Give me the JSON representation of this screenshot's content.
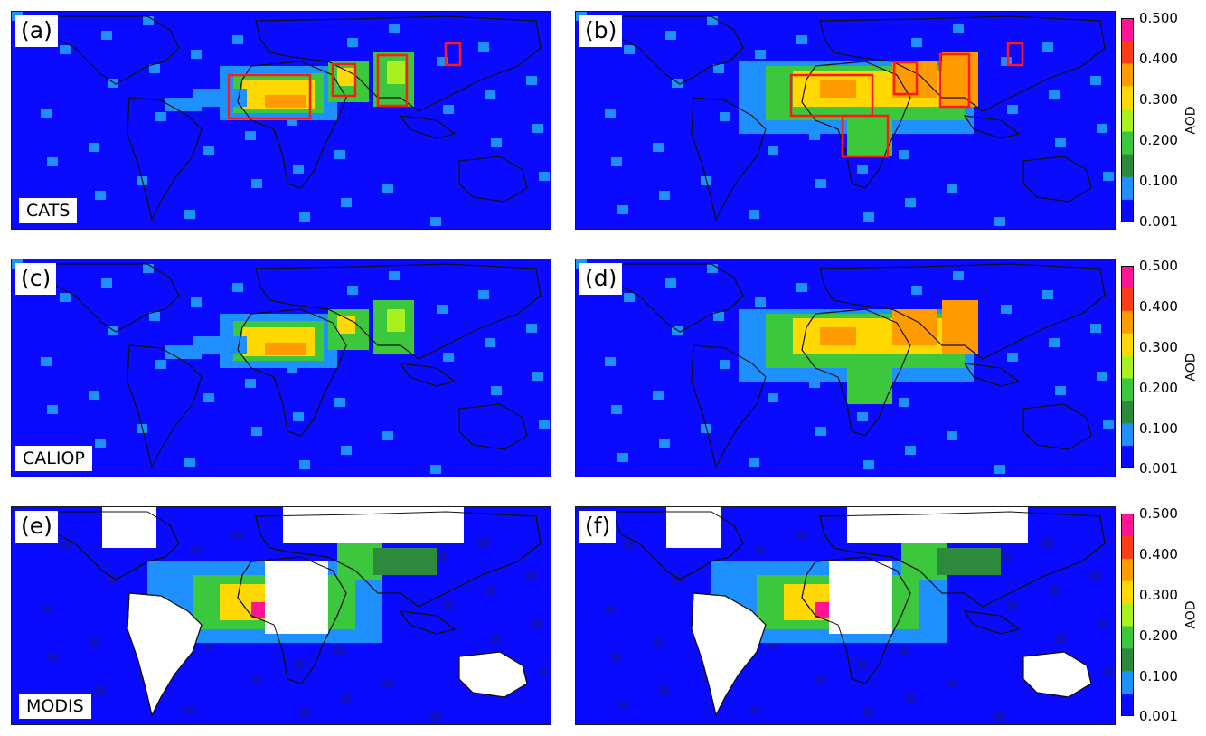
{
  "panels": [
    {
      "tag": "(a)",
      "dataset": "CATS",
      "variant": "day",
      "boxes": "a"
    },
    {
      "tag": "(b)",
      "dataset": "",
      "variant": "night",
      "boxes": "b"
    },
    {
      "tag": "(c)",
      "dataset": "CALIOP",
      "variant": "day",
      "boxes": ""
    },
    {
      "tag": "(d)",
      "dataset": "",
      "variant": "night",
      "boxes": ""
    },
    {
      "tag": "(e)",
      "dataset": "MODIS",
      "variant": "modis",
      "boxes": ""
    },
    {
      "tag": "(f)",
      "dataset": "",
      "variant": "modis2",
      "boxes": ""
    }
  ],
  "colorbar": {
    "label": "AOD",
    "ticks": [
      "0.500",
      "0.400",
      "0.300",
      "0.200",
      "0.100",
      "0.001"
    ],
    "colors": [
      "#ff1493",
      "#ff3b1a",
      "#ff9a00",
      "#ffd800",
      "#a8f01e",
      "#3cc83c",
      "#2d8a3c",
      "#1e90ff",
      "#0a0aff"
    ]
  },
  "chart_data": {
    "type": "heatmap",
    "title": "",
    "colorbar_label": "AOD",
    "colorbar_ticks": [
      0.5,
      0.4,
      0.3,
      0.2,
      0.1,
      0.001
    ],
    "panels": [
      "(a) CATS",
      "(b)",
      "(c) CALIOP",
      "(d)",
      "(e) MODIS",
      "(f)"
    ]
  }
}
